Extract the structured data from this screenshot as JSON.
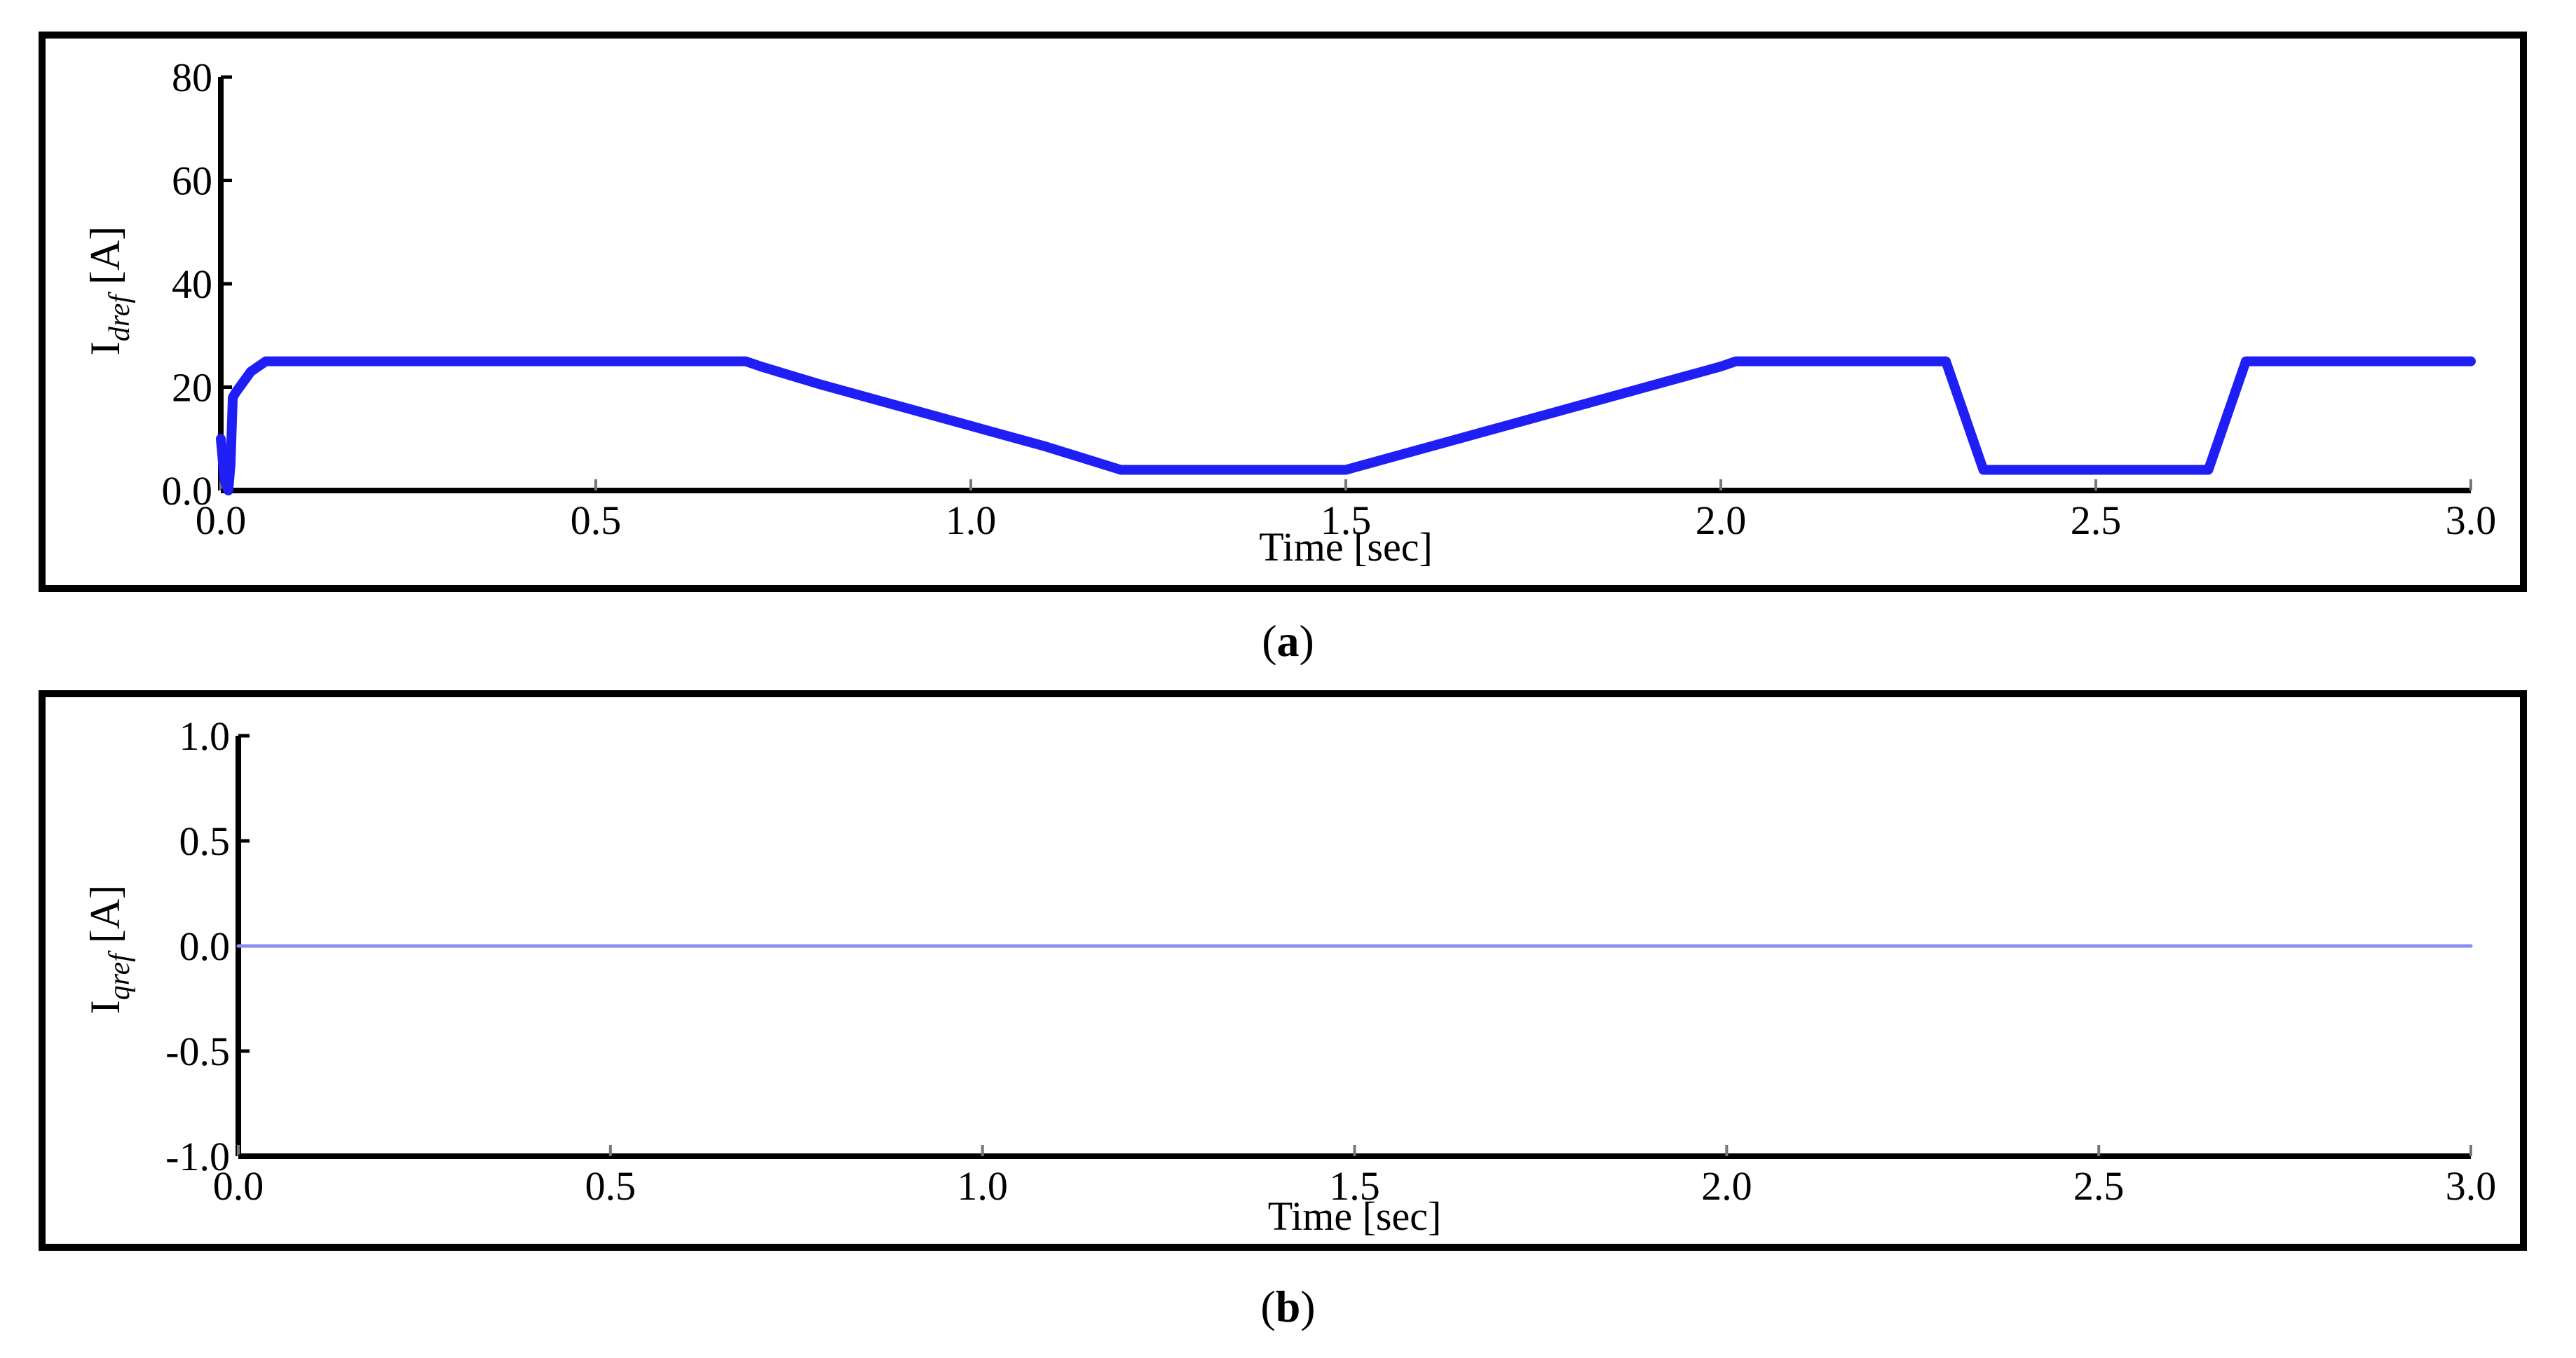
{
  "chart_data": [
    {
      "type": "line",
      "caption_letter": "a",
      "xlabel": "Time [sec]",
      "ylabel_main": "I",
      "ylabel_sub": "dref",
      "ylabel_unit": " [A]",
      "xlim": [
        0.0,
        3.0
      ],
      "ylim": [
        0.0,
        80
      ],
      "xticks": [
        "0.0",
        "0.5",
        "1.0",
        "1.5",
        "2.0",
        "2.5",
        "3.0"
      ],
      "yticks": [
        "0.0",
        "20",
        "40",
        "60",
        "80"
      ],
      "grid": false,
      "line_color": "#1f1ff5",
      "series": [
        {
          "x": [
            0.0,
            0.005,
            0.01,
            0.013,
            0.016,
            0.02,
            0.025,
            0.04,
            0.06,
            0.08,
            0.7,
            0.72,
            0.8,
            0.9,
            1.0,
            1.1,
            1.2,
            1.3,
            1.4,
            1.5,
            1.6,
            1.7,
            1.8,
            1.9,
            2.0,
            2.02,
            2.3,
            2.35,
            2.65,
            2.7,
            3.0
          ],
          "y": [
            10,
            2,
            0,
            5,
            18,
            19,
            20,
            23,
            25,
            25,
            25,
            24,
            20.5,
            16.5,
            12.5,
            8.5,
            4,
            4,
            4,
            4,
            8,
            12,
            16,
            20,
            24,
            25,
            25,
            4,
            4,
            25,
            25
          ]
        }
      ]
    },
    {
      "type": "line",
      "caption_letter": "b",
      "xlabel": "Time [sec]",
      "ylabel_main": "I",
      "ylabel_sub": "qref",
      "ylabel_unit": " [A]",
      "xlim": [
        0.0,
        3.0
      ],
      "ylim": [
        -1.0,
        1.0
      ],
      "xticks": [
        "0.0",
        "0.5",
        "1.0",
        "1.5",
        "2.0",
        "2.5",
        "3.0"
      ],
      "yticks": [
        "-1.0",
        "-0.5",
        "0.0",
        "0.5",
        "1.0"
      ],
      "grid": false,
      "line_color": "#8c8cf5",
      "series": [
        {
          "x": [
            0.0,
            3.0
          ],
          "y": [
            0.0,
            0.0
          ]
        }
      ]
    }
  ]
}
